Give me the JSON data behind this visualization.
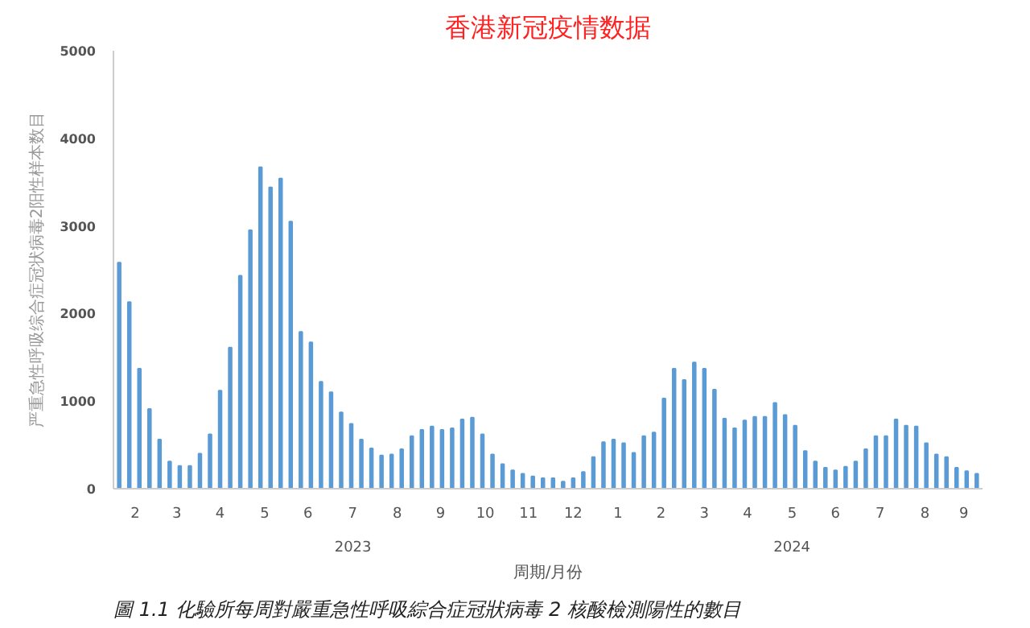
{
  "chart_data": {
    "type": "bar",
    "title": "香港新冠疫情数据",
    "xlabel": "周期/月份",
    "ylabel": "严重急性呼吸综合症冠状病毒2阳性样本数目",
    "annotations": [
      "2023",
      "2024",
      "圖 1.1 化驗所每周對嚴重急性呼吸綜合症冠狀病毒 2 核酸檢測陽性的數目"
    ],
    "x": [
      "2023-02-04",
      "2023-02-11",
      "2023-02-18",
      "2023-02-25",
      "2023-03-04",
      "2023-03-11",
      "2023-03-18",
      "2023-03-25",
      "2023-04-01",
      "2023-04-08",
      "2023-04-15",
      "2023-04-22",
      "2023-04-29",
      "2023-05-06",
      "2023-05-13",
      "2023-05-20",
      "2023-05-27",
      "2023-06-03",
      "2023-06-10",
      "2023-06-17",
      "2023-06-24",
      "2023-07-01",
      "2023-07-08",
      "2023-07-15",
      "2023-07-22",
      "2023-07-29",
      "2023-08-05",
      "2023-08-12",
      "2023-08-19",
      "2023-08-26",
      "2023-09-02",
      "2023-09-09",
      "2023-09-16",
      "2023-09-23",
      "2023-09-30",
      "2023-10-07",
      "2023-10-14",
      "2023-10-21",
      "2023-10-28",
      "2023-11-04",
      "2023-11-11",
      "2023-11-18",
      "2023-11-25",
      "2023-12-02",
      "2023-12-09",
      "2023-12-16",
      "2023-12-23",
      "2023-12-30",
      "2024-01-06",
      "2024-01-13",
      "2024-01-20",
      "2024-01-27",
      "2024-02-03",
      "2024-02-10",
      "2024-02-17",
      "2024-02-24",
      "2024-03-02",
      "2024-03-09",
      "2024-03-16",
      "2024-03-23",
      "2024-03-30",
      "2024-04-06",
      "2024-04-13",
      "2024-04-20",
      "2024-04-27",
      "2024-05-04",
      "2024-05-11",
      "2024-05-18",
      "2024-05-25",
      "2024-06-01",
      "2024-06-08",
      "2024-06-15",
      "2024-06-22",
      "2024-06-29",
      "2024-07-06",
      "2024-07-13",
      "2024-07-20",
      "2024-07-27",
      "2024-08-03",
      "2024-08-10",
      "2024-08-17",
      "2024-08-24",
      "2024-08-31",
      "2024-09-07",
      "2024-09-14",
      "2024-09-21"
    ],
    "values": [
      2580,
      2130,
      1370,
      910,
      560,
      310,
      260,
      260,
      400,
      620,
      1120,
      1610,
      2430,
      2950,
      3670,
      3440,
      3540,
      3050,
      1790,
      1670,
      1220,
      1100,
      870,
      740,
      560,
      460,
      380,
      390,
      450,
      600,
      670,
      710,
      670,
      690,
      790,
      810,
      620,
      390,
      280,
      210,
      170,
      140,
      120,
      120,
      80,
      120,
      190,
      360,
      530,
      560,
      520,
      410,
      600,
      640,
      1030,
      1370,
      1240,
      1440,
      1370,
      1130,
      800,
      690,
      780,
      820,
      820,
      980,
      840,
      720,
      430,
      310,
      240,
      210,
      250,
      310,
      450,
      600,
      600,
      790,
      720,
      710,
      520,
      390,
      360,
      240,
      200,
      170
    ],
    "color": "#5b9bd5",
    "xlim": [
      "2023-01-31",
      "2024-09-25"
    ],
    "xticks": [
      {
        "value": "2023-02-15",
        "label": "2"
      },
      {
        "value": "2023-03-16",
        "label": "3"
      },
      {
        "value": "2023-04-15",
        "label": "4"
      },
      {
        "value": "2023-05-16",
        "label": "5"
      },
      {
        "value": "2023-06-15",
        "label": "6"
      },
      {
        "value": "2023-07-16",
        "label": "7"
      },
      {
        "value": "2023-08-16",
        "label": "8"
      },
      {
        "value": "2023-09-15",
        "label": "9"
      },
      {
        "value": "2023-10-16",
        "label": "10"
      },
      {
        "value": "2023-11-15",
        "label": "11"
      },
      {
        "value": "2023-12-16",
        "label": "12"
      },
      {
        "value": "2024-01-16",
        "label": "1"
      },
      {
        "value": "2024-02-15",
        "label": "2"
      },
      {
        "value": "2024-03-16",
        "label": "3"
      },
      {
        "value": "2024-04-15",
        "label": "4"
      },
      {
        "value": "2024-05-16",
        "label": "5"
      },
      {
        "value": "2024-06-15",
        "label": "6"
      },
      {
        "value": "2024-07-16",
        "label": "7"
      },
      {
        "value": "2024-08-16",
        "label": "8"
      },
      {
        "value": "2024-09-12",
        "label": "9"
      }
    ],
    "ylim": [
      0,
      5000
    ],
    "yticks": [
      0,
      1000,
      2000,
      3000,
      4000,
      5000
    ],
    "grid": false
  }
}
